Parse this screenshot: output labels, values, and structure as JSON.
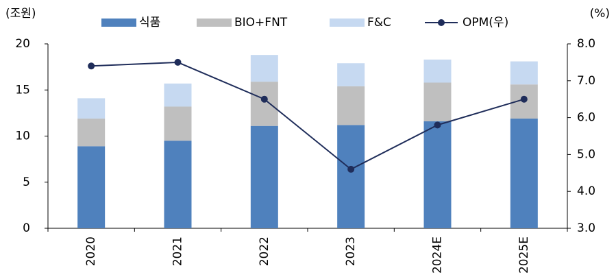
{
  "chart_data": {
    "type": "bar",
    "stacked": true,
    "y_axis_label": "(조원)",
    "y2_axis_label": "(%)",
    "categories": [
      "2020",
      "2021",
      "2022",
      "2023",
      "2024E",
      "2025E"
    ],
    "series": [
      {
        "name": "식품",
        "color": "#4f81bd",
        "values": [
          8.9,
          9.5,
          11.1,
          11.2,
          11.6,
          11.9
        ]
      },
      {
        "name": "BIO+FNT",
        "color": "#bfbfbf",
        "values": [
          3.0,
          3.7,
          4.8,
          4.2,
          4.2,
          3.7
        ]
      },
      {
        "name": "F&C",
        "color": "#c6d9f1",
        "values": [
          2.2,
          2.5,
          2.9,
          2.5,
          2.5,
          2.5
        ]
      },
      {
        "name": "OPM(우)",
        "color": "#1f2d5a",
        "type": "line",
        "axis": "y2",
        "values": [
          7.4,
          7.5,
          6.5,
          4.6,
          5.8,
          6.5
        ]
      }
    ],
    "ylim": [
      0,
      20
    ],
    "yticks": [
      0,
      5,
      10,
      15,
      20
    ],
    "y2lim": [
      3,
      8
    ],
    "y2ticks": [
      {
        "value": 3,
        "label": "3.0"
      },
      {
        "value": 4,
        "label": "4.0"
      },
      {
        "value": 5,
        "label": "5.0"
      },
      {
        "value": 6,
        "label": "6.0"
      },
      {
        "value": 7,
        "label": "7.0"
      },
      {
        "value": 8,
        "label": "8.0"
      }
    ],
    "legend": "top"
  }
}
